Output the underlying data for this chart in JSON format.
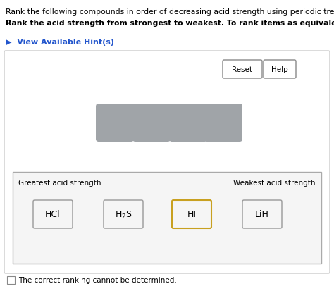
{
  "title_line1": "Rank the following compounds in order of decreasing acid strength using periodic trends.",
  "title_line2": "Rank the acid strength from strongest to weakest. To rank items as equivalent, overlap them.",
  "hint_text": "▶  View Available Hint(s)",
  "reset_label": "Reset",
  "help_label": "Help",
  "gray_box_color": "#a0a4a8",
  "greatest_label": "Greatest acid strength",
  "weakest_label": "Weakest acid strength",
  "compounds": [
    "HCl",
    "H₂S",
    "HI",
    "LiH"
  ],
  "compound_box_color": "#f5f5f5",
  "compound_box_border": "#999999",
  "hi_border_color": "#c8a020",
  "checkbox_text": "The correct ranking cannot be determined.",
  "bg_color": "#ffffff",
  "hint_color": "#2255cc"
}
